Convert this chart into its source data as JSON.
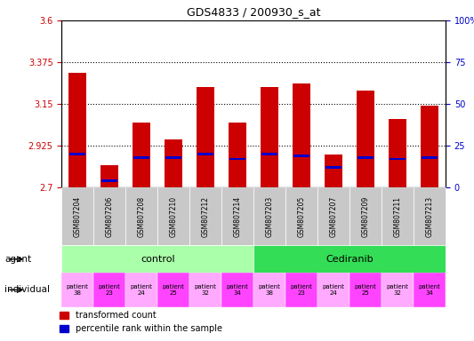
{
  "title": "GDS4833 / 200930_s_at",
  "samples": [
    "GSM807204",
    "GSM807206",
    "GSM807208",
    "GSM807210",
    "GSM807212",
    "GSM807214",
    "GSM807203",
    "GSM807205",
    "GSM807207",
    "GSM807209",
    "GSM807211",
    "GSM807213"
  ],
  "transformed_count": [
    3.32,
    2.82,
    3.05,
    2.96,
    3.24,
    3.05,
    3.24,
    3.26,
    2.88,
    3.22,
    3.07,
    3.14
  ],
  "percentile_rank": [
    20,
    4,
    18,
    18,
    20,
    17,
    20,
    19,
    12,
    18,
    17,
    18
  ],
  "ylim_left": [
    2.7,
    3.6
  ],
  "ylim_right": [
    0,
    100
  ],
  "yticks_left": [
    2.7,
    2.925,
    3.15,
    3.375,
    3.6
  ],
  "yticks_right": [
    0,
    25,
    50,
    75,
    100
  ],
  "ytick_labels_left": [
    "2.7",
    "2.925",
    "3.15",
    "3.375",
    "3.6"
  ],
  "ytick_labels_right": [
    "0",
    "25",
    "50",
    "75",
    "100%"
  ],
  "hlines": [
    3.375,
    3.15,
    2.925
  ],
  "bar_color_red": "#cc0000",
  "bar_color_blue": "#0000cc",
  "bar_width": 0.55,
  "agent_control_label": "control",
  "agent_cediranib_label": "Cediranib",
  "agent_control_color": "#aaffaa",
  "agent_cediranib_color": "#33dd55",
  "individual_labels": [
    "patient\n38",
    "patient\n23",
    "patient\n24",
    "patient\n25",
    "patient\n32",
    "patient\n34",
    "patient\n38",
    "patient\n23",
    "patient\n24",
    "patient\n25",
    "patient\n32",
    "patient\n34"
  ],
  "individual_colors": [
    "#ffaaff",
    "#ff44ff",
    "#ffaaff",
    "#ff44ff",
    "#ffaaff",
    "#ff44ff",
    "#ffaaff",
    "#ff44ff",
    "#ffaaff",
    "#ff44ff",
    "#ffaaff",
    "#ff44ff"
  ],
  "legend_red_label": "transformed count",
  "legend_blue_label": "percentile rank within the sample",
  "left_label_color": "#cc0000",
  "right_label_color": "#0000cc",
  "base": 2.7,
  "blue_bar_scale": 0.009,
  "blue_bar_height": 0.012,
  "gray_bg": "#c8c8c8",
  "title_fontsize": 9
}
